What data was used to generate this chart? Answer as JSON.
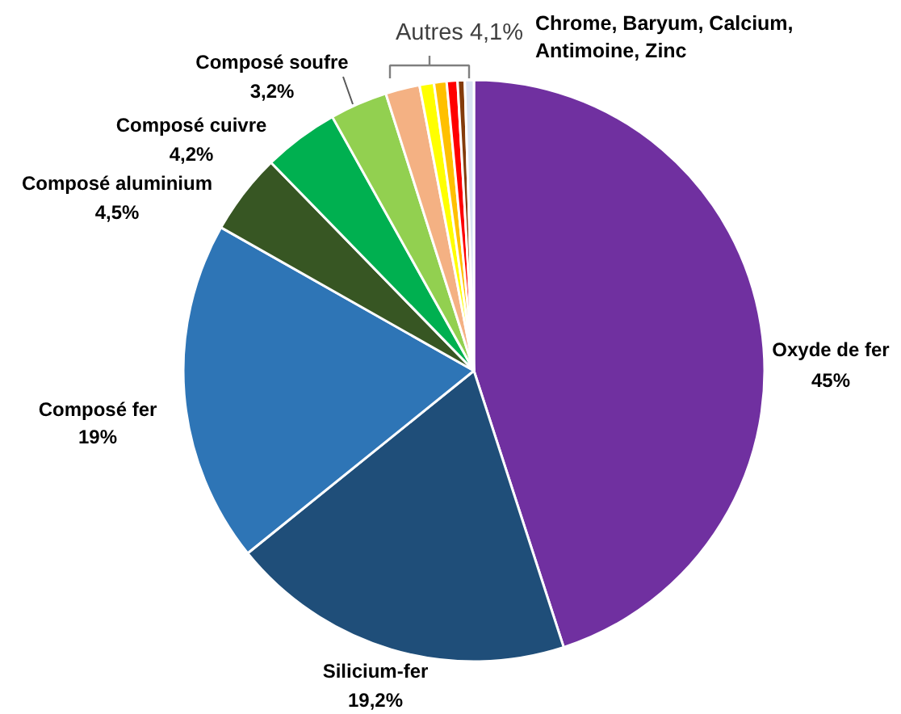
{
  "chart_data": {
    "type": "pie",
    "categories": [
      "Oxyde de fer",
      "Silicium-fer",
      "Composé fer",
      "Composé aluminium",
      "Composé cuivre",
      "Composé soufre",
      null,
      null,
      null,
      null,
      null,
      null
    ],
    "values": [
      45,
      19.2,
      19,
      4.5,
      4.2,
      3.2,
      1.9,
      0.8,
      0.7,
      0.6,
      0.4,
      0.5
    ],
    "colors": [
      "#7030a0",
      "#1f4e79",
      "#2e75b6",
      "#375623",
      "#00b050",
      "#92d050",
      "#f4b183",
      "#ffff00",
      "#ffc000",
      "#ff0000",
      "#843c0c",
      "#dae3f3"
    ],
    "value_labels": [
      "45%",
      "19,2%",
      "19%",
      "4,5%",
      "4,2%",
      "3,2%",
      null,
      null,
      null,
      null,
      null,
      null
    ],
    "annotations": [
      "Autres 4,1%",
      "Chrome, Baryum, Calcium, Antimoine, Zinc"
    ]
  }
}
